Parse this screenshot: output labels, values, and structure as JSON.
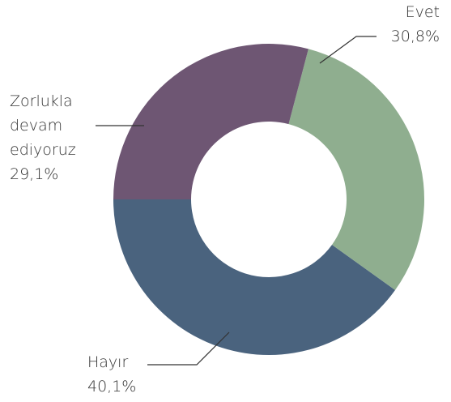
{
  "chart_data": {
    "type": "donut",
    "categories": [
      "Zorlukla devam ediyoruz",
      "Evet",
      "Hayır"
    ],
    "values": [
      29.1,
      30.8,
      40.1
    ],
    "value_labels": [
      "29,1%",
      "30,8%",
      "40,1%"
    ],
    "colors": [
      "#6e5673",
      "#8fae8f",
      "#4a637e"
    ]
  }
}
